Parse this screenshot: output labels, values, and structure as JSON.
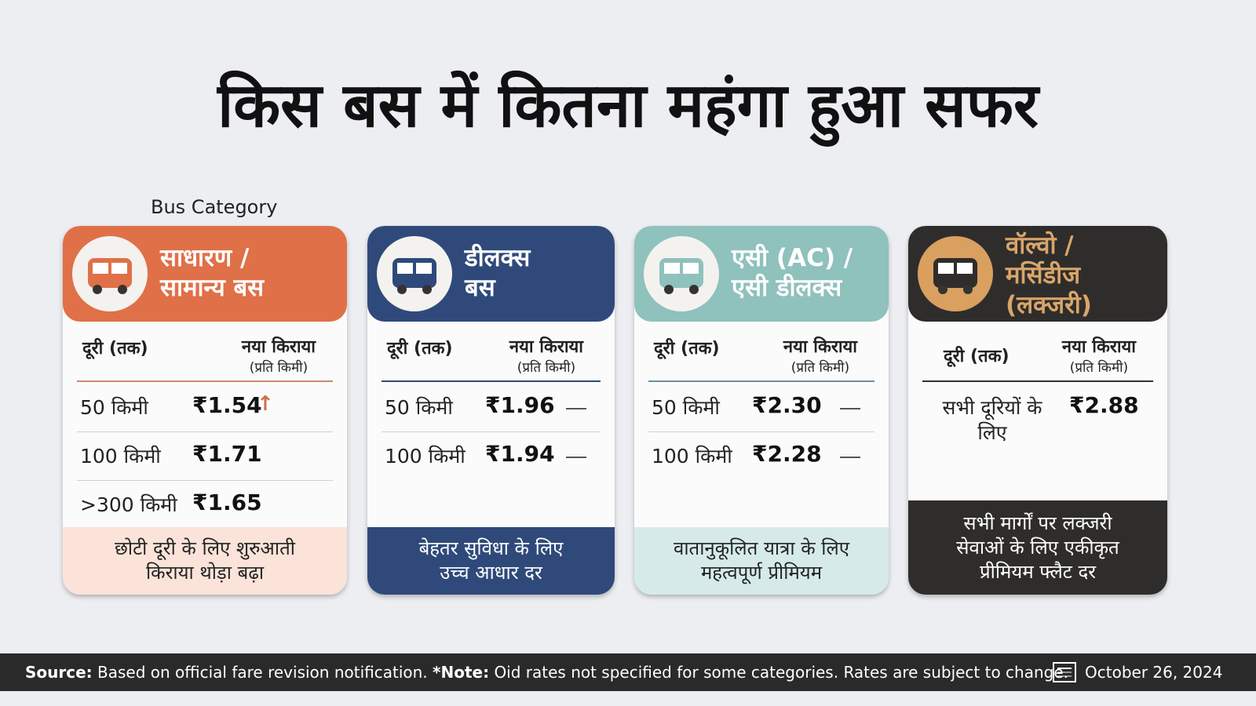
{
  "header": {
    "title": "किस बस में कितना महंगा हुआ सफर",
    "label": "Bus Category"
  },
  "cards": [
    {
      "title": [
        "साधारण /",
        "सामान्य बस"
      ],
      "col1": "दूरी (तक)",
      "col2": "नया किराया",
      "col2_sub": "(प्रति किमी)",
      "rows": [
        [
          "50 किमी",
          "₹1.54"
        ],
        [
          "100 किमी",
          "₹1.71"
        ],
        [
          ">300 किमी",
          "₹1.65"
        ]
      ],
      "note": [
        "छोटी दूरी के लिए शुरुआती",
        "किराया थोड़ा बढ़ा"
      ]
    },
    {
      "title": [
        "डीलक्स",
        "बस"
      ],
      "col1": "दूरी (तक)",
      "col2": "नया किराया",
      "col2_sub": "(प्रति किमी)",
      "rows": [
        [
          "50 किमी",
          "₹1.96"
        ],
        [
          "100 किमी",
          "₹1.94"
        ]
      ],
      "note": [
        "बेहतर सुविधा के लिए",
        "उच्च आधार दर"
      ]
    },
    {
      "title": [
        "एसी (AC) /",
        "एसी डीलक्स"
      ],
      "col1": "दूरी (तक)",
      "col2": "नया किराया",
      "col2_sub": "(प्रति किमी)",
      "rows": [
        [
          "50 किमी",
          "₹2.30"
        ],
        [
          "100 किमी",
          "₹2.28"
        ]
      ],
      "note": [
        "वातानुकूलित यात्रा के लिए",
        "महत्वपूर्ण प्रीमियम"
      ]
    },
    {
      "title": [
        "वॉल्वो /",
        "मर्सिडीज",
        "(लक्जरी)"
      ],
      "col1": "दूरी (तक)",
      "col2": "नया किराया",
      "col2_sub": "(प्रति किमी)",
      "rows": [
        [
          "सभी दूरियों के लिए",
          "₹2.88"
        ]
      ],
      "note": [
        "सभी मार्गों पर लक्जरी",
        "सेवाओं के लिए एकीकृत",
        "प्रीमियम फ्लैट दर"
      ]
    }
  ],
  "footer": {
    "source_label": "Source:",
    "source_text": "Based on official fare revision notification.",
    "note_label": "*Note:",
    "note_text": "Oid rates not specified for some categories. Rates are subject to change.",
    "date": "October 26, 2024"
  }
}
